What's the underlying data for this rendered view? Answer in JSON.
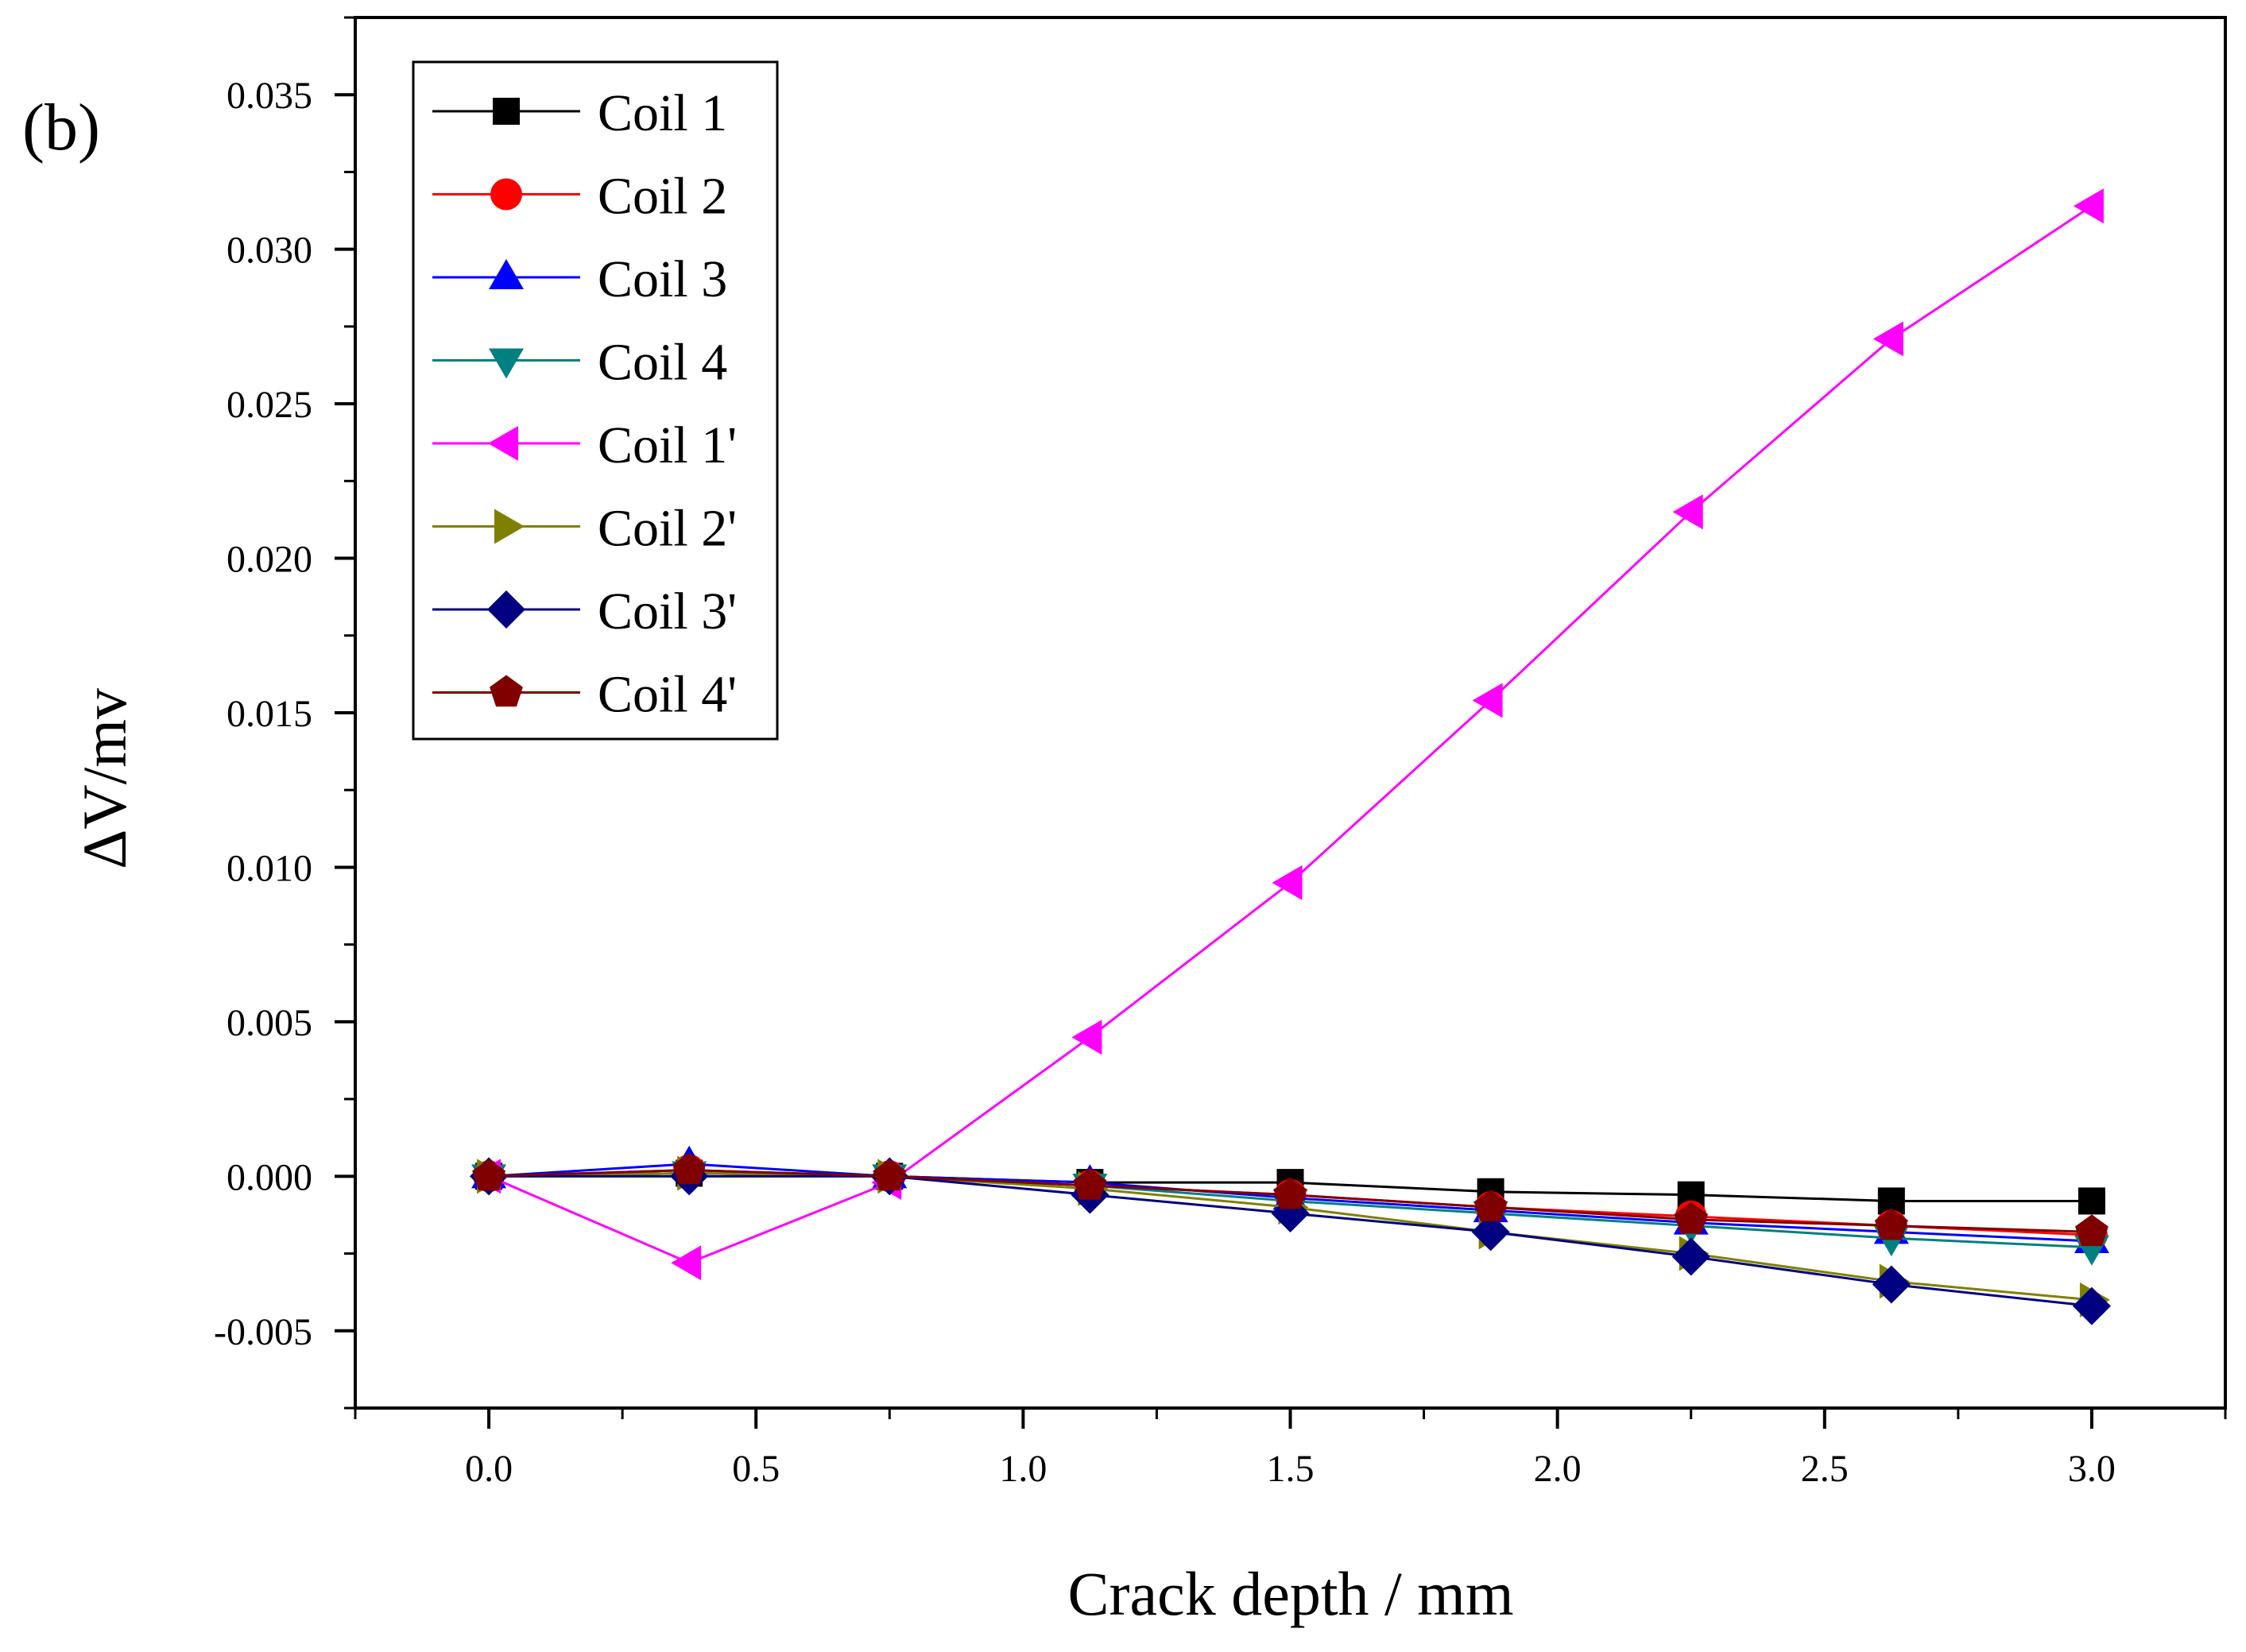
{
  "chart_data": {
    "type": "line",
    "panel_label": "(b)",
    "xlabel": "Crack depth / mm",
    "ylabel": "ΔV/mv",
    "xlim": [
      -0.25,
      3.25
    ],
    "ylim": [
      -0.0075,
      0.0375
    ],
    "x_ticks": [
      "0.0",
      "0.5",
      "1.0",
      "1.5",
      "2.0",
      "2.5",
      "3.0"
    ],
    "y_ticks": [
      "-0.005",
      "0.000",
      "0.005",
      "0.010",
      "0.015",
      "0.020",
      "0.025",
      "0.030",
      "0.035"
    ],
    "grid": false,
    "legend_position": "top-left",
    "x": [
      0,
      0.375,
      0.75,
      1.125,
      1.5,
      1.875,
      2.25,
      2.625,
      3.0
    ],
    "series": [
      {
        "name": "Coil 1",
        "color": "#000000",
        "marker": "square",
        "values": [
          0,
          0.0001,
          0,
          -0.0002,
          -0.0002,
          -0.0005,
          -0.0006,
          -0.0008,
          -0.0008
        ]
      },
      {
        "name": "Coil 2",
        "color": "#ff0000",
        "marker": "circle",
        "values": [
          0,
          0.0002,
          0,
          -0.0003,
          -0.0006,
          -0.001,
          -0.0013,
          -0.0016,
          -0.0019
        ]
      },
      {
        "name": "Coil 3",
        "color": "#0000ff",
        "marker": "triangle-up",
        "values": [
          0,
          0.0004,
          0,
          -0.0002,
          -0.0007,
          -0.0011,
          -0.0015,
          -0.0018,
          -0.0021
        ]
      },
      {
        "name": "Coil 4",
        "color": "#008080",
        "marker": "triangle-down",
        "values": [
          0,
          0.0001,
          0,
          -0.0003,
          -0.0008,
          -0.0012,
          -0.0016,
          -0.002,
          -0.0023
        ]
      },
      {
        "name": "Coil 1'",
        "color": "#ff00ff",
        "marker": "triangle-left",
        "values": [
          0,
          -0.0028,
          -0.0002,
          0.0045,
          0.0095,
          0.0154,
          0.0215,
          0.0271,
          0.0314
        ]
      },
      {
        "name": "Coil 2'",
        "color": "#808000",
        "marker": "triangle-right",
        "values": [
          0,
          0.0001,
          0,
          -0.0004,
          -0.001,
          -0.0018,
          -0.0025,
          -0.0034,
          -0.004
        ]
      },
      {
        "name": "Coil 3'",
        "color": "#000080",
        "marker": "diamond",
        "values": [
          0,
          0,
          0,
          -0.0006,
          -0.0012,
          -0.0018,
          -0.0026,
          -0.0035,
          -0.0042
        ]
      },
      {
        "name": "Coil 4'",
        "color": "#800000",
        "marker": "pentagon",
        "values": [
          0,
          0.0002,
          0,
          -0.0003,
          -0.0006,
          -0.001,
          -0.0014,
          -0.0016,
          -0.0018
        ]
      }
    ]
  }
}
